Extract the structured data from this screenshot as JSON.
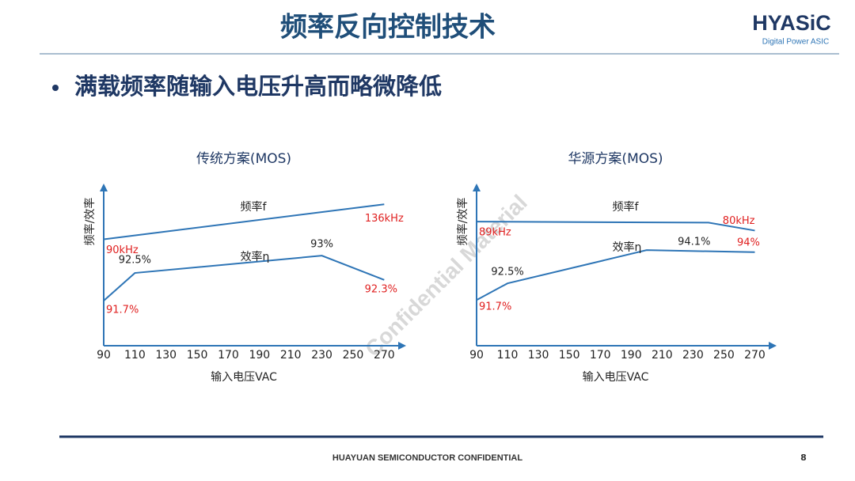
{
  "title": "频率反向控制技术",
  "logo": {
    "name": "HYASiC",
    "tagline": "Digital Power ASIC"
  },
  "bullet": "满载频率随输入电压升高而略微降低",
  "watermark": "Confidential Material",
  "footer": {
    "text": "HUAYUAN SEMICONDUCTOR CONFIDENTIAL",
    "page": "8"
  },
  "chart_data": [
    {
      "type": "line",
      "title": "传统方案(MOS)",
      "x_label": "输入电压VAC",
      "y_label": "频率/效率",
      "xlim": [
        90,
        280
      ],
      "xticks": [
        90,
        110,
        130,
        150,
        170,
        190,
        210,
        230,
        250,
        270
      ],
      "ylim": [
        -50,
        155
      ],
      "y2lim": [
        90.4,
        94.9
      ],
      "series": [
        {
          "name": "频率f",
          "color": "#2e75b6",
          "x": [
            90,
            270
          ],
          "values": [
            90,
            136
          ],
          "value_labels": [
            "90kHz",
            "136kHz"
          ],
          "value_label_colors": [
            "#e02020",
            "#e02020"
          ]
        },
        {
          "name": "效率η",
          "color": "#2e75b6",
          "axis": "y2",
          "x": [
            90,
            110,
            230,
            270
          ],
          "values": [
            91.7,
            92.5,
            93,
            92.3
          ],
          "value_labels": [
            "91.7%",
            "92.5%",
            "93%",
            "92.3%"
          ],
          "value_label_colors": [
            "#e02020",
            "#222222",
            "#222222",
            "#e02020"
          ]
        }
      ]
    },
    {
      "type": "line",
      "title": "华源方案(MOS)",
      "x_label": "输入电压VAC",
      "y_label": "频率/效率",
      "xlim": [
        90,
        280
      ],
      "xticks": [
        90,
        110,
        130,
        150,
        170,
        190,
        210,
        230,
        250,
        270
      ],
      "ylim": [
        -36,
        121
      ],
      "y2lim": [
        89.5,
        97
      ],
      "series": [
        {
          "name": "频率f",
          "color": "#2e75b6",
          "x": [
            90,
            240,
            270
          ],
          "values": [
            89,
            88,
            80
          ],
          "value_labels": [
            "89kHz",
            null,
            "80kHz"
          ],
          "value_label_colors": [
            "#e02020",
            null,
            "#e02020"
          ]
        },
        {
          "name": "效率η",
          "color": "#2e75b6",
          "axis": "y2",
          "x": [
            90,
            110,
            200,
            270
          ],
          "values": [
            91.7,
            92.5,
            94.1,
            94
          ],
          "value_labels": [
            "91.7%",
            "92.5%",
            "94.1%",
            "94%"
          ],
          "value_label_colors": [
            "#e02020",
            "#222222",
            "#222222",
            "#e02020"
          ]
        }
      ]
    }
  ]
}
